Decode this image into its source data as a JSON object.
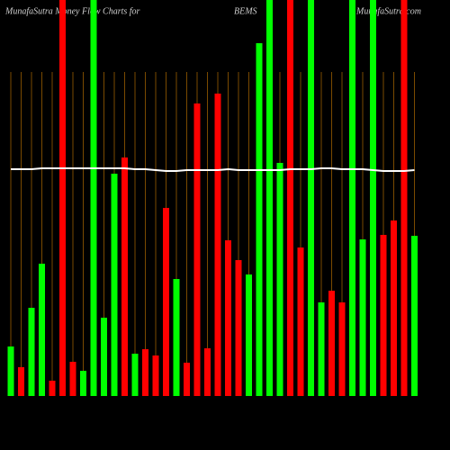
{
  "chart_data": {
    "type": "bar",
    "title": "MunafaSutra Money Flow Charts for",
    "symbol": "BEMS",
    "site": "MunafaSutra.com",
    "values": [
      55,
      32,
      98,
      147,
      17,
      440,
      38,
      28,
      440,
      87,
      247,
      265,
      47,
      52,
      45,
      209,
      130,
      37,
      325,
      53,
      336,
      173,
      151,
      135,
      392,
      440,
      259,
      440,
      165,
      440,
      104,
      117,
      104,
      440,
      174,
      440,
      179,
      195,
      440,
      178
    ],
    "colors": [
      "#00ff00",
      "#ff0000",
      "#00ff00",
      "#00ff00",
      "#ff0000",
      "#ff0000",
      "#ff0000",
      "#00ff00",
      "#00ff00",
      "#00ff00",
      "#00ff00",
      "#ff0000",
      "#00ff00",
      "#ff0000",
      "#ff0000",
      "#ff0000",
      "#00ff00",
      "#ff0000",
      "#ff0000",
      "#ff0000",
      "#ff0000",
      "#ff0000",
      "#ff0000",
      "#00ff00",
      "#00ff00",
      "#00ff00",
      "#00ff00",
      "#ff0000",
      "#ff0000",
      "#00ff00",
      "#00ff00",
      "#ff0000",
      "#ff0000",
      "#00ff00",
      "#00ff00",
      "#00ff00",
      "#ff0000",
      "#ff0000",
      "#ff0000",
      "#00ff00"
    ],
    "line_values": [
      252,
      252,
      252,
      253,
      253,
      253,
      253,
      253,
      253,
      253,
      253,
      253,
      252,
      252,
      251,
      250,
      250,
      251,
      251,
      251,
      251,
      252,
      251,
      251,
      251,
      251,
      251,
      252,
      252,
      252,
      253,
      253,
      252,
      252,
      252,
      251,
      250,
      250,
      250,
      251
    ],
    "line_color": "#ffffff",
    "ylim": [
      0,
      440
    ]
  }
}
